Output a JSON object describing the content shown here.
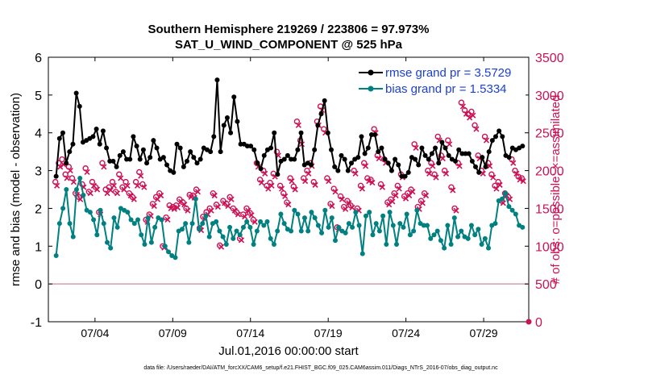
{
  "colors": {
    "rmse": "#000000",
    "bias": "#008080",
    "obs": "#cc1155",
    "zero_line": "#d4a0a8",
    "legend_text": "#1a3fd6"
  },
  "footer": "data file: /Users/raeder/DAI/ATM_forcXX/CAM6_setup/f.e21.FHIST_BGC.f09_025.CAM6assim.011/Diags_NTrS_2016-07/obs_diag_output.nc",
  "chart_data": {
    "type": "line",
    "title": [
      "Southern Hemisphere 219269 / 223806 = 97.973%",
      "SAT_U_WIND_COMPONENT @ 525 hPa"
    ],
    "xlabel": "Jul.01,2016 00:00:00 start",
    "ylabel": "rmse and bias (model - observation)",
    "y2label": "# of obs: o=possible; ×=assimilated",
    "xlim": [
      0.5,
      31.4
    ],
    "ylim": [
      -1,
      6
    ],
    "y2lim": [
      0,
      3500
    ],
    "x_ticks": [
      {
        "x": 3.5,
        "label": "07/04"
      },
      {
        "x": 8.5,
        "label": "07/09"
      },
      {
        "x": 13.5,
        "label": "07/14"
      },
      {
        "x": 18.5,
        "label": "07/19"
      },
      {
        "x": 23.5,
        "label": "07/24"
      },
      {
        "x": 28.5,
        "label": "07/29"
      }
    ],
    "y_ticks": [
      -1,
      0,
      1,
      2,
      3,
      4,
      5,
      6
    ],
    "y2_ticks": [
      0,
      500,
      1000,
      1500,
      2000,
      2500,
      3000,
      3500
    ],
    "legend": [
      {
        "name": "rmse grand pr = 3.5729"
      },
      {
        "name": "bias grand pr = 1.5334"
      }
    ],
    "series": [
      {
        "name": "rmse",
        "axis": "left",
        "values": [
          2.85,
          3.85,
          4.0,
          3.2,
          3.5,
          3.7,
          5.05,
          4.7,
          3.75,
          3.8,
          3.85,
          3.9,
          4.1,
          3.7,
          4.05,
          3.6,
          3.25,
          3.25,
          3.1,
          3.4,
          3.5,
          3.3,
          3.3,
          3.9,
          3.65,
          3.3,
          3.55,
          3.2,
          3.35,
          3.8,
          3.6,
          3.3,
          3.35,
          3.15,
          3.0,
          2.95,
          3.7,
          3.6,
          3.1,
          3.25,
          3.5,
          3.35,
          3.2,
          3.3,
          3.6,
          3.55,
          3.5,
          3.9,
          5.4,
          3.5,
          4.2,
          4.4,
          4.0,
          4.95,
          4.3,
          3.7,
          3.7,
          3.65,
          3.65,
          3.55,
          3.2,
          3.05,
          3.4,
          3.55,
          3.6,
          4.0,
          2.9,
          3.25,
          3.3,
          3.4,
          3.3,
          3.3,
          3.55,
          4.0,
          3.15,
          3.2,
          3.15,
          3.55,
          4.2,
          4.5,
          4.85,
          4.0,
          3.55,
          3.1,
          3.0,
          3.4,
          3.3,
          3.0,
          3.2,
          3.3,
          3.35,
          3.9,
          3.45,
          3.6,
          3.95,
          3.95,
          3.5,
          3.6,
          3.3,
          3.2,
          3.0,
          3.3,
          3.15,
          2.85,
          2.85,
          2.95,
          3.35,
          3.3,
          3.15,
          3.6,
          3.4,
          3.3,
          3.45,
          3.6,
          3.2,
          3.75,
          3.6,
          3.4,
          3.3,
          3.25,
          3.55,
          3.45,
          3.45,
          3.45,
          3.25,
          3.1,
          2.95,
          3.35,
          3.1,
          3.5,
          3.8,
          3.9,
          4.05,
          3.9,
          3.4,
          3.35,
          3.6,
          3.55,
          3.6,
          3.65
        ]
      },
      {
        "name": "bias",
        "axis": "left",
        "values": [
          0.75,
          1.6,
          2.0,
          2.5,
          1.6,
          1.25,
          2.5,
          2.8,
          2.35,
          1.95,
          1.9,
          1.7,
          1.3,
          1.95,
          1.6,
          1.1,
          0.95,
          1.75,
          1.5,
          2.0,
          1.95,
          1.9,
          1.7,
          1.6,
          1.7,
          1.3,
          1.05,
          1.75,
          1.1,
          1.5,
          1.75,
          1.7,
          1.0,
          0.85,
          0.75,
          0.7,
          1.4,
          1.45,
          1.6,
          1.1,
          1.6,
          2.25,
          1.45,
          1.6,
          1.8,
          1.25,
          1.6,
          1.65,
          1.4,
          1.25,
          1.05,
          1.5,
          1.2,
          1.4,
          1.3,
          1.5,
          1.65,
          1.5,
          1.05,
          1.4,
          1.65,
          1.55,
          1.65,
          1.2,
          1.05,
          1.4,
          1.85,
          1.6,
          1.45,
          1.4,
          1.95,
          1.85,
          1.4,
          1.75,
          1.4,
          1.9,
          1.75,
          1.55,
          1.35,
          1.95,
          1.5,
          1.75,
          1.15,
          1.5,
          1.4,
          1.35,
          1.6,
          1.5,
          1.9,
          1.55,
          0.8,
          1.8,
          1.9,
          1.3,
          1.6,
          1.4,
          1.8,
          1.05,
          1.9,
          1.55,
          1.05,
          1.6,
          1.5,
          1.85,
          1.3,
          1.4,
          1.95,
          1.6,
          1.55,
          1.55,
          1.2,
          1.3,
          1.4,
          1.15,
          0.95,
          1.55,
          1.05,
          1.75,
          1.25,
          1.4,
          1.25,
          1.2,
          1.55,
          1.3,
          1.45,
          1.05,
          1.2,
          0.95,
          1.55,
          1.6,
          2.2,
          2.25,
          2.4,
          2.05,
          1.95,
          1.85,
          1.55,
          1.5
        ]
      },
      {
        "name": "obs possible",
        "axis": "right",
        "values": [
          1850,
          2100,
          2150,
          1950,
          2050,
          1900,
          1700,
          1650,
          1820,
          2030,
          1720,
          1850,
          1780,
          1450,
          2100,
          1750,
          1780,
          1850,
          1720,
          1950,
          1780,
          1850,
          1700,
          1650,
          1850,
          1980,
          1820,
          1350,
          1420,
          1560,
          1650,
          1700,
          1000,
          1380,
          1540,
          1520,
          1540,
          1620,
          1580,
          1500,
          1680,
          1670,
          1750,
          1240,
          1390,
          1450,
          1500,
          1700,
          1550,
          1010,
          1600,
          1560,
          1650,
          1500,
          1450,
          1100,
          1420,
          1500,
          1440,
          1350,
          2100,
          1880,
          2000,
          1800,
          1840,
          1960,
          2250,
          1800,
          1700,
          1580,
          1900,
          1790,
          2650,
          2400,
          1900,
          2000,
          2100,
          1850,
          2650,
          2850,
          2550,
          1900,
          1560,
          1760,
          1250,
          1660,
          1520,
          1600,
          1540,
          2000,
          1500,
          1800,
          2100,
          1900,
          1880,
          2550,
          2200,
          1820,
          2150,
          1580,
          1620,
          1700,
          1800,
          1950,
          1660,
          1700,
          1750,
          2350,
          1520,
          1600,
          1700,
          2000,
          2100,
          1950,
          2450,
          2200,
          2000,
          2400,
          1780,
          1500,
          2100,
          2900,
          2800,
          2750,
          2780,
          2600,
          2200,
          2000,
          2450,
          2100,
          1950,
          1800,
          1850,
          1600,
          1700,
          1650,
          2150,
          2000,
          1920,
          1900
        ]
      },
      {
        "name": "obs assimilated",
        "axis": "right",
        "values": [
          1800,
          2050,
          2080,
          1900,
          2000,
          1850,
          1680,
          1620,
          1780,
          1980,
          1700,
          1800,
          1750,
          1420,
          2050,
          1700,
          1740,
          1800,
          1700,
          1900,
          1750,
          1800,
          1670,
          1620,
          1800,
          1930,
          1780,
          1320,
          1400,
          1530,
          1620,
          1670,
          980,
          1350,
          1500,
          1490,
          1510,
          1590,
          1550,
          1470,
          1650,
          1640,
          1720,
          1210,
          1360,
          1420,
          1470,
          1670,
          1520,
          990,
          1570,
          1530,
          1620,
          1470,
          1420,
          1080,
          1390,
          1470,
          1410,
          1320,
          2050,
          1840,
          1960,
          1760,
          1800,
          1920,
          2200,
          1760,
          1660,
          1550,
          1860,
          1750,
          2600,
          2350,
          1860,
          1960,
          2060,
          1810,
          2600,
          2800,
          2500,
          1860,
          1530,
          1720,
          1220,
          1620,
          1490,
          1570,
          1510,
          1960,
          1470,
          1760,
          2060,
          1860,
          1840,
          2500,
          2160,
          1780,
          2100,
          1550,
          1590,
          1670,
          1760,
          1910,
          1630,
          1670,
          1720,
          2300,
          1490,
          1570,
          1670,
          1960,
          2060,
          1910,
          2400,
          2160,
          1960,
          2350,
          1740,
          1470,
          2060,
          2850,
          2750,
          2700,
          2730,
          2550,
          2160,
          1960,
          2400,
          2060,
          1910,
          1760,
          1810,
          1570,
          1670,
          1620,
          2100,
          1960,
          1880,
          1860
        ]
      }
    ],
    "extra_points": [
      {
        "series": "obs assimilated",
        "x": 31.4,
        "y2": 0
      }
    ]
  }
}
